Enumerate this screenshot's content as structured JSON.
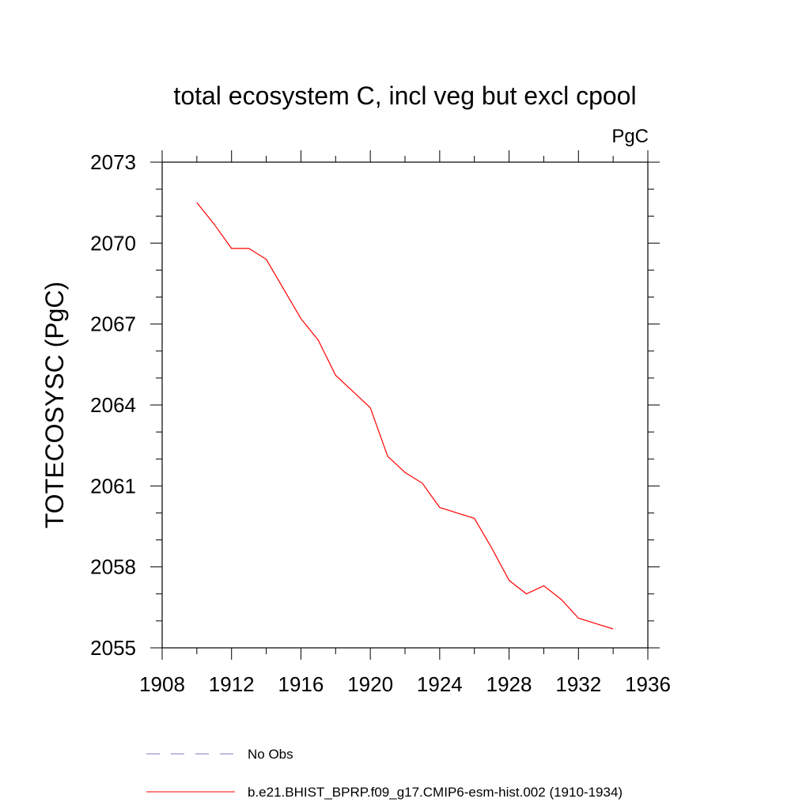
{
  "chart_data": {
    "type": "line",
    "title": "total ecosystem C, incl veg but excl cpool",
    "units_label": "PgC",
    "ylabel": "TOTECOSYSC  (PgC)",
    "xlabel": "",
    "xlim": [
      1908,
      1936
    ],
    "ylim": [
      2055,
      2073
    ],
    "x_ticks": [
      1908,
      1912,
      1916,
      1920,
      1924,
      1928,
      1932,
      1936
    ],
    "y_ticks": [
      2055,
      2058,
      2061,
      2064,
      2067,
      2070,
      2073
    ],
    "grid": false,
    "legend_position": "bottom",
    "series": [
      {
        "name": "No Obs",
        "color": "#7b7bc8",
        "dash": "dashed",
        "x": [],
        "y": []
      },
      {
        "name": "b.e21.BHIST_BPRP.f09_g17.CMIP6-esm-hist.002 (1910-1934)",
        "color": "#ff0000",
        "dash": "solid",
        "x": [
          1910,
          1911,
          1912,
          1913,
          1914,
          1915,
          1916,
          1917,
          1918,
          1919,
          1920,
          1921,
          1922,
          1923,
          1924,
          1925,
          1926,
          1927,
          1928,
          1929,
          1930,
          1931,
          1932,
          1933,
          1934
        ],
        "y": [
          2071.5,
          2070.7,
          2069.8,
          2069.8,
          2069.4,
          2068.3,
          2067.2,
          2066.4,
          2065.1,
          2064.5,
          2063.9,
          2062.1,
          2061.5,
          2061.1,
          2060.2,
          2060.0,
          2059.8,
          2058.7,
          2057.5,
          2057.0,
          2057.3,
          2056.8,
          2056.1,
          2055.9,
          2055.7
        ]
      }
    ]
  }
}
